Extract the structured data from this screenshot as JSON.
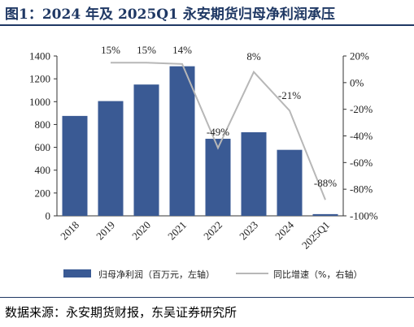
{
  "title": "图1：2024 年及 2025Q1 永安期货归母净利润承压",
  "source": "数据来源：永安期货财报，东吴证券研究所",
  "chart_data": {
    "type": "bar+line",
    "categories": [
      "2018",
      "2019",
      "2020",
      "2021",
      "2022",
      "2023",
      "2024",
      "2025Q1"
    ],
    "series": [
      {
        "name": "归母净利润（百万元，左轴）",
        "type": "bar",
        "axis": "left",
        "values": [
          875,
          1005,
          1150,
          1310,
          675,
          732,
          578,
          15
        ],
        "color": "#3a5a94"
      },
      {
        "name": "同比增速（%，右轴）",
        "type": "line",
        "axis": "right",
        "values": [
          null,
          15,
          15,
          14,
          -49,
          8,
          -21,
          -88
        ],
        "labels": [
          "",
          "15%",
          "15%",
          "14%",
          "-49%",
          "8%",
          "-21%",
          "-88%"
        ],
        "color": "#b7b7b7"
      }
    ],
    "left_axis": {
      "min": 0,
      "max": 1400,
      "ticks": [
        0,
        200,
        400,
        600,
        800,
        1000,
        1200,
        1400
      ]
    },
    "right_axis": {
      "min": -100,
      "max": 20,
      "ticks": [
        "20%",
        "0%",
        "-20%",
        "-40%",
        "-60%",
        "-80%",
        "-100%"
      ]
    },
    "legend_position": "bottom"
  }
}
